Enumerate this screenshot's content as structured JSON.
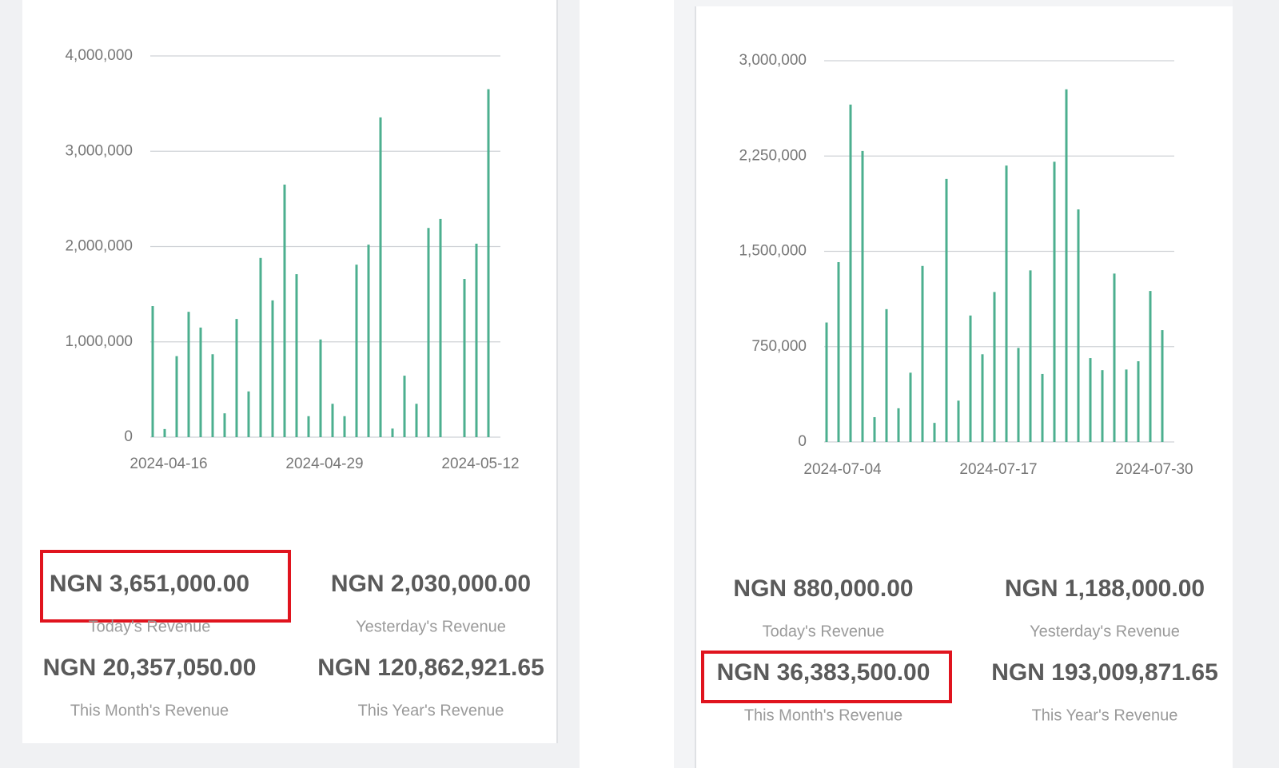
{
  "chart_data": [
    {
      "type": "bar",
      "color": "#4caf8f",
      "grid": true,
      "categories": [
        null,
        "2024-04-16",
        null,
        null,
        null,
        null,
        null,
        null,
        null,
        null,
        null,
        null,
        null,
        null,
        "2024-04-29",
        null,
        null,
        null,
        null,
        null,
        null,
        null,
        null,
        null,
        null,
        null,
        null,
        "2024-05-12",
        null
      ],
      "values": [
        1375000,
        85000,
        850000,
        1315000,
        1150000,
        870000,
        250000,
        1240000,
        480000,
        1880000,
        1435000,
        2650000,
        1710000,
        220000,
        1025000,
        350000,
        220000,
        1810000,
        2020000,
        3355000,
        90000,
        645000,
        350000,
        2195000,
        2290000,
        0,
        1660000,
        2030000,
        3651000
      ],
      "ylim": [
        0,
        4000000
      ],
      "yticks": [
        0,
        {
          "value": 1000000,
          "label": "1,000,000"
        },
        {
          "value": 2000000,
          "label": "2,000,000"
        },
        {
          "value": 3000000,
          "label": "3,000,000"
        },
        {
          "value": 4000000,
          "label": "4,000,000"
        }
      ]
    },
    {
      "type": "bar",
      "color": "#4caf8f",
      "grid": true,
      "categories": [
        null,
        "2024-07-04",
        null,
        null,
        null,
        null,
        null,
        null,
        null,
        null,
        null,
        null,
        null,
        null,
        "2024-07-17",
        null,
        null,
        null,
        null,
        null,
        null,
        null,
        null,
        null,
        null,
        null,
        null,
        "2024-07-30",
        null
      ],
      "values": [
        940000,
        1415000,
        2655000,
        2290000,
        195000,
        1045000,
        265000,
        545000,
        1385000,
        150000,
        2070000,
        325000,
        995000,
        690000,
        1180000,
        2175000,
        740000,
        1350000,
        535000,
        2205000,
        2775000,
        1830000,
        660000,
        565000,
        1325000,
        570000,
        635000,
        1188000,
        880000
      ],
      "ylim": [
        0,
        3000000
      ],
      "yticks": [
        0,
        {
          "value": 750000,
          "label": "750,000"
        },
        {
          "value": 1500000,
          "label": "1,500,000"
        },
        {
          "value": 2250000,
          "label": "2,250,000"
        },
        {
          "value": 3000000,
          "label": "3,000,000"
        }
      ]
    }
  ],
  "stats": [
    [
      {
        "value": "NGN 3,651,000.00",
        "label": "Today's Revenue"
      },
      {
        "value": "NGN 2,030,000.00",
        "label": "Yesterday's Revenue"
      },
      {
        "value": "NGN 20,357,050.00",
        "label": "This Month's Revenue"
      },
      {
        "value": "NGN 120,862,921.65",
        "label": "This Year's Revenue"
      }
    ],
    [
      {
        "value": "NGN 880,000.00",
        "label": "Today's Revenue"
      },
      {
        "value": "NGN 1,188,000.00",
        "label": "Yesterday's Revenue"
      },
      {
        "value": "NGN 36,383,500.00",
        "label": "This Month's Revenue"
      },
      {
        "value": "NGN 193,009,871.65",
        "label": "This Year's Revenue"
      }
    ]
  ]
}
